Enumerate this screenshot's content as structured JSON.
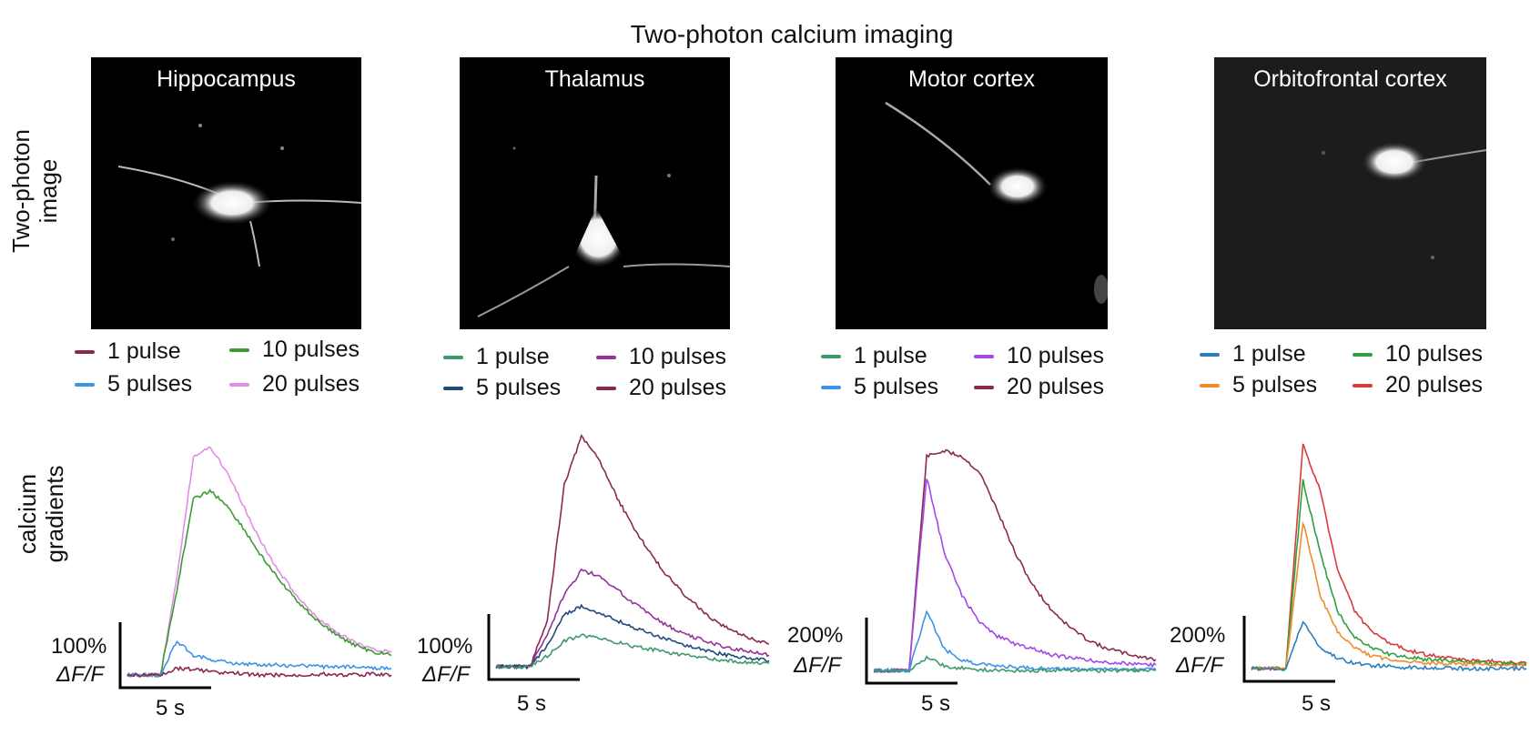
{
  "figure_title": "Two-photon calcium imaging",
  "row_labels": {
    "image_row": [
      "Two-photon",
      "image"
    ],
    "trace_row": [
      "calcium gradients"
    ]
  },
  "panels": [
    {
      "region": "Hippocampus",
      "legend": [
        {
          "label": "1 pulse",
          "color": "#8b2850"
        },
        {
          "label": "10 pulses",
          "color": "#3c9a35"
        },
        {
          "label": "5 pulses",
          "color": "#3d94e6"
        },
        {
          "label": "20 pulses",
          "color": "#e68be6"
        }
      ],
      "scalebar": {
        "y_label_top": "100%",
        "y_label_bottom": "ΔF/F",
        "x_label": "5 s"
      }
    },
    {
      "region": "Thalamus",
      "legend": [
        {
          "label": "1 pulse",
          "color": "#3d9a6a"
        },
        {
          "label": "10 pulses",
          "color": "#94329a"
        },
        {
          "label": "5 pulses",
          "color": "#1e4a7c"
        },
        {
          "label": "20 pulses",
          "color": "#8b2850"
        }
      ],
      "scalebar": {
        "y_label_top": "100%",
        "y_label_bottom": "ΔF/F",
        "x_label": "5 s"
      }
    },
    {
      "region": "Motor cortex",
      "legend": [
        {
          "label": "1 pulse",
          "color": "#3d9a6a"
        },
        {
          "label": "10 pulses",
          "color": "#a448e8"
        },
        {
          "label": "5 pulses",
          "color": "#3d94e6"
        },
        {
          "label": "20 pulses",
          "color": "#8b2850"
        }
      ],
      "scalebar": {
        "y_label_top": "200%",
        "y_label_bottom": "ΔF/F",
        "x_label": "5 s"
      }
    },
    {
      "region": "Orbitofrontal cortex",
      "legend": [
        {
          "label": "1 pulse",
          "color": "#2a7fc0"
        },
        {
          "label": "10 pulses",
          "color": "#2ea043"
        },
        {
          "label": "5 pulses",
          "color": "#f08c28"
        },
        {
          "label": "20 pulses",
          "color": "#d93a3a"
        }
      ],
      "scalebar": {
        "y_label_top": "200%",
        "y_label_bottom": "ΔF/F",
        "x_label": "5 s"
      }
    }
  ],
  "chart_data": [
    {
      "type": "line",
      "panel": "Hippocampus",
      "x": [
        0,
        2,
        4,
        6,
        8,
        10,
        12,
        14,
        16,
        18,
        20,
        22,
        24,
        26,
        28,
        30,
        32
      ],
      "series": [
        {
          "name": "1 pulse",
          "values": [
            0,
            0,
            0,
            12,
            10,
            6,
            4,
            2,
            0,
            0,
            -2,
            0,
            2,
            0,
            0,
            2,
            0
          ]
        },
        {
          "name": "5 pulses",
          "values": [
            0,
            0,
            0,
            60,
            35,
            28,
            22,
            20,
            18,
            18,
            16,
            16,
            14,
            14,
            14,
            12,
            12
          ]
        },
        {
          "name": "10 pulses",
          "values": [
            0,
            0,
            0,
            150,
            310,
            325,
            300,
            260,
            215,
            175,
            140,
            110,
            85,
            65,
            50,
            40,
            35
          ]
        },
        {
          "name": "20 pulses",
          "values": [
            0,
            0,
            0,
            170,
            385,
            400,
            360,
            300,
            240,
            190,
            150,
            115,
            90,
            70,
            55,
            45,
            40
          ]
        }
      ]
    },
    {
      "type": "line",
      "panel": "Thalamus",
      "x": [
        0,
        2,
        4,
        6,
        8,
        10,
        12,
        14,
        16,
        18,
        20,
        22,
        24,
        26,
        28,
        30,
        32
      ],
      "series": [
        {
          "name": "1 pulse",
          "values": [
            0,
            0,
            0,
            10,
            25,
            30,
            27,
            24,
            20,
            17,
            14,
            11,
            9,
            7,
            5,
            4,
            3
          ]
        },
        {
          "name": "5 pulses",
          "values": [
            0,
            0,
            0,
            20,
            50,
            58,
            52,
            45,
            38,
            32,
            26,
            21,
            17,
            13,
            10,
            8,
            6
          ]
        },
        {
          "name": "10 pulses",
          "values": [
            0,
            0,
            0,
            30,
            70,
            92,
            88,
            75,
            62,
            50,
            40,
            32,
            26,
            21,
            17,
            14,
            11
          ]
        },
        {
          "name": "20 pulses",
          "values": [
            0,
            0,
            0,
            45,
            175,
            220,
            200,
            165,
            135,
            110,
            88,
            70,
            55,
            42,
            33,
            27,
            22
          ]
        }
      ]
    },
    {
      "type": "line",
      "panel": "Motor cortex",
      "x": [
        0,
        2,
        4,
        6,
        8,
        10,
        12,
        14,
        16,
        18,
        20,
        22,
        24,
        26,
        28,
        30,
        32
      ],
      "series": [
        {
          "name": "1 pulse",
          "values": [
            0,
            0,
            0,
            12,
            4,
            2,
            1,
            0,
            0,
            0,
            0,
            0,
            0,
            0,
            0,
            0,
            0
          ]
        },
        {
          "name": "5 pulses",
          "values": [
            0,
            0,
            0,
            55,
            20,
            10,
            6,
            4,
            3,
            2,
            2,
            1,
            1,
            1,
            1,
            1,
            1
          ]
        },
        {
          "name": "10 pulses",
          "values": [
            0,
            0,
            0,
            180,
            110,
            70,
            45,
            32,
            25,
            20,
            15,
            12,
            10,
            8,
            7,
            6,
            5
          ]
        },
        {
          "name": "20 pulses",
          "values": [
            0,
            0,
            0,
            200,
            205,
            200,
            185,
            150,
            110,
            80,
            58,
            42,
            30,
            22,
            17,
            13,
            10
          ]
        }
      ]
    },
    {
      "type": "line",
      "panel": "Orbitofrontal cortex",
      "x": [
        0,
        2,
        4,
        6,
        8,
        10,
        12,
        14,
        16,
        18,
        20,
        22,
        24,
        26,
        28,
        30,
        32
      ],
      "series": [
        {
          "name": "1 pulse",
          "values": [
            0,
            0,
            0,
            45,
            20,
            10,
            5,
            3,
            2,
            1,
            1,
            1,
            0,
            0,
            0,
            0,
            0
          ]
        },
        {
          "name": "5 pulses",
          "values": [
            0,
            0,
            0,
            140,
            70,
            35,
            20,
            12,
            9,
            7,
            6,
            5,
            4,
            4,
            3,
            3,
            3
          ]
        },
        {
          "name": "10 pulses",
          "values": [
            0,
            0,
            0,
            180,
            110,
            55,
            30,
            20,
            14,
            11,
            9,
            8,
            7,
            6,
            5,
            5,
            4
          ]
        },
        {
          "name": "20 pulses",
          "values": [
            0,
            0,
            0,
            215,
            170,
            95,
            55,
            35,
            25,
            18,
            14,
            11,
            9,
            8,
            7,
            6,
            5
          ]
        }
      ]
    }
  ]
}
